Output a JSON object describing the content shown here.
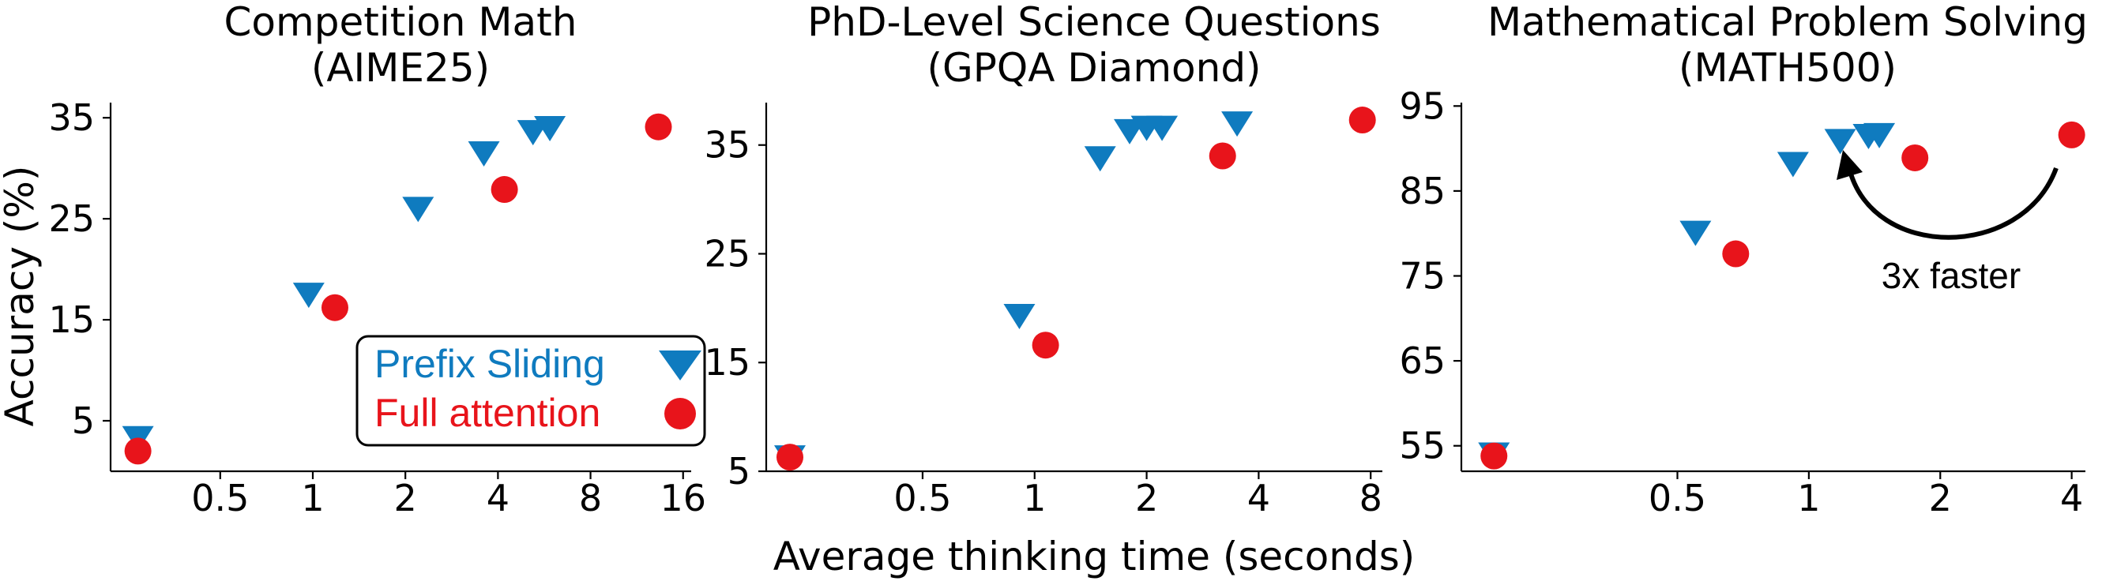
{
  "figure": {
    "xlabel": "Average thinking time (seconds)",
    "ylabel": "Accuracy (%)",
    "colors": {
      "prefix_sliding": "#0f7bbf",
      "full_attention": "#e8141b"
    },
    "legend": {
      "placement": "lower-right of first panel",
      "items": [
        "Prefix Sliding",
        "Full attention"
      ]
    },
    "annotation": {
      "text": "3x faster",
      "panel": 2
    },
    "log_x": true,
    "grid": false
  },
  "chart_data": [
    {
      "type": "scatter",
      "title": "Competition Math\n(AIME25)",
      "xlabel": "",
      "ylabel": "Accuracy (%)",
      "xscale": "log2",
      "xticks": [
        0.5,
        1,
        2,
        4,
        8,
        16
      ],
      "xtick_labels": [
        "0.5",
        "1",
        "2",
        "4",
        "8",
        "16"
      ],
      "yticks": [
        5,
        15,
        25,
        35
      ],
      "ylim": [
        0,
        36.5
      ],
      "xlim": [
        0.22,
        17
      ],
      "series": [
        {
          "name": "Prefix Sliding",
          "marker": "triangle-down",
          "x": [
            0.27,
            0.97,
            2.2,
            3.6,
            5.2,
            5.9
          ],
          "y": [
            3.3,
            17.5,
            26,
            31.5,
            33.6,
            34
          ]
        },
        {
          "name": "Full attention",
          "marker": "circle",
          "x": [
            0.27,
            1.18,
            4.2,
            13.3
          ],
          "y": [
            2.0,
            16.2,
            27.9,
            34.1
          ]
        }
      ]
    },
    {
      "type": "scatter",
      "title": "PhD-Level Science Questions\n(GPQA Diamond)",
      "xlabel": "Average thinking time (seconds)",
      "ylabel": "",
      "xscale": "log2",
      "xticks": [
        0.5,
        1,
        2,
        4,
        8
      ],
      "xtick_labels": [
        "0.5",
        "1",
        "2",
        "4",
        "8"
      ],
      "yticks": [
        5,
        15,
        25,
        35
      ],
      "ylim": [
        5,
        38.9
      ],
      "xlim": [
        0.19,
        8.6
      ],
      "series": [
        {
          "name": "Prefix Sliding",
          "marker": "triangle-down",
          "x": [
            0.22,
            0.91,
            1.5,
            1.8,
            2.0,
            2.2,
            3.5
          ],
          "y": [
            6.3,
            19.3,
            33.8,
            36.3,
            36.6,
            36.6,
            37.0
          ]
        },
        {
          "name": "Full attention",
          "marker": "circle",
          "x": [
            0.22,
            1.07,
            3.2,
            7.6
          ],
          "y": [
            6.3,
            16.6,
            34.0,
            37.3
          ]
        }
      ]
    },
    {
      "type": "scatter",
      "title": "Mathematical Problem Solving\n(MATH500)",
      "xlabel": "",
      "ylabel": "",
      "xscale": "log2",
      "xticks": [
        0.5,
        1,
        2,
        4
      ],
      "xtick_labels": [
        "0.5",
        "1",
        "2",
        "4"
      ],
      "yticks": [
        55,
        65,
        75,
        85,
        95
      ],
      "ylim": [
        52,
        95.4
      ],
      "xlim": [
        0.16,
        4.3
      ],
      "series": [
        {
          "name": "Prefix Sliding",
          "marker": "triangle-down",
          "x": [
            0.19,
            0.55,
            0.92,
            1.18,
            1.37,
            1.45
          ],
          "y": [
            54.0,
            80.1,
            88.2,
            90.9,
            91.5,
            91.6
          ]
        },
        {
          "name": "Full attention",
          "marker": "circle",
          "x": [
            0.19,
            0.68,
            1.75,
            4.0
          ],
          "y": [
            53.8,
            77.6,
            88.9,
            91.6
          ]
        }
      ]
    }
  ]
}
